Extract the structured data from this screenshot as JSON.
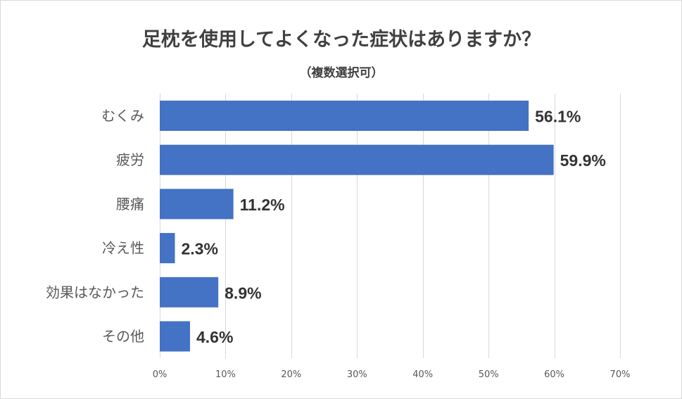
{
  "chart_data": {
    "type": "bar",
    "orientation": "horizontal",
    "title": "足枕を使用してよくなった症状はありますか？",
    "subtitle": "（複数選択可）",
    "categories": [
      "むくみ",
      "疲労",
      "腰痛",
      "冷え性",
      "効果はなかった",
      "その他"
    ],
    "values": [
      56.1,
      59.9,
      11.2,
      2.3,
      8.9,
      4.6
    ],
    "data_labels": [
      "56.1%",
      "59.9%",
      "11.2%",
      "2.3%",
      "8.9%",
      "4.6%"
    ],
    "xlim": [
      0,
      70
    ],
    "x_ticks": [
      0,
      10,
      20,
      30,
      40,
      50,
      60,
      70
    ],
    "x_tick_labels": [
      "0%",
      "10%",
      "20%",
      "30%",
      "40%",
      "50%",
      "60%",
      "70%"
    ],
    "grid": "vertical",
    "legend": "none",
    "bar_color": "#4472c4"
  }
}
